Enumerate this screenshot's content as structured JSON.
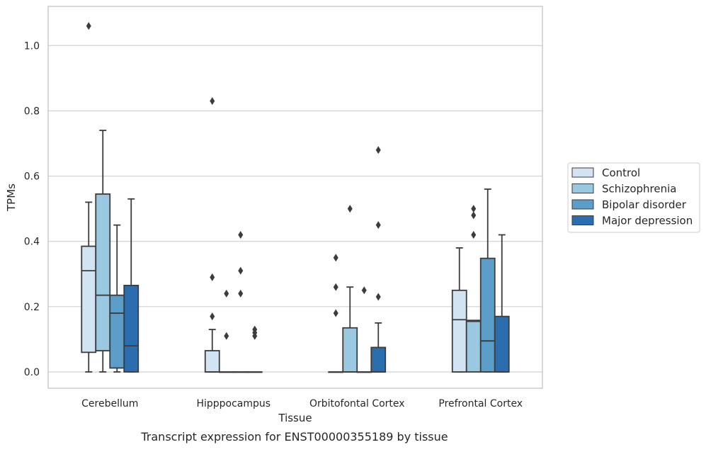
{
  "chart_data": {
    "type": "box",
    "xlabel": "Tissue",
    "ylabel": "TPMs",
    "caption": "Transcript expression for ENST00000355189 by tissue",
    "categories": [
      "Cerebellum",
      "Hipppocampus",
      "Orbitofontal Cortex",
      "Prefrontal Cortex"
    ],
    "ylim": [
      -0.05,
      1.12
    ],
    "yticks": [
      0.0,
      0.2,
      0.4,
      0.6,
      0.8,
      1.0
    ],
    "ytick_labels": [
      "0.0",
      "0.2",
      "0.4",
      "0.6",
      "0.8",
      "1.0"
    ],
    "grid": "horizontal",
    "legend_position": "right",
    "series": [
      {
        "name": "Control",
        "color": "#d2e3f3",
        "boxes": [
          {
            "whisker_low": 0.0,
            "q1": 0.06,
            "median": 0.31,
            "q3": 0.385,
            "whisker_high": 0.52,
            "outliers": [
              1.06
            ]
          },
          {
            "whisker_low": 0.0,
            "q1": 0.0,
            "median": 0.0,
            "q3": 0.065,
            "whisker_high": 0.13,
            "outliers": [
              0.17,
              0.29,
              0.83
            ]
          },
          {
            "whisker_low": 0.0,
            "q1": 0.0,
            "median": 0.0,
            "q3": 0.0,
            "whisker_high": 0.0,
            "outliers": [
              0.18,
              0.26,
              0.35
            ]
          },
          {
            "whisker_low": 0.0,
            "q1": 0.0,
            "median": 0.16,
            "q3": 0.25,
            "whisker_high": 0.38,
            "outliers": []
          }
        ]
      },
      {
        "name": "Schizophrenia",
        "color": "#9ac8e0",
        "boxes": [
          {
            "whisker_low": 0.0,
            "q1": 0.065,
            "median": 0.235,
            "q3": 0.545,
            "whisker_high": 0.74,
            "outliers": []
          },
          {
            "whisker_low": 0.0,
            "q1": 0.0,
            "median": 0.0,
            "q3": 0.0,
            "whisker_high": 0.0,
            "outliers": [
              0.11,
              0.24
            ]
          },
          {
            "whisker_low": 0.0,
            "q1": 0.0,
            "median": 0.0,
            "q3": 0.135,
            "whisker_high": 0.26,
            "outliers": [
              0.5
            ]
          },
          {
            "whisker_low": 0.0,
            "q1": 0.0,
            "median": 0.155,
            "q3": 0.158,
            "whisker_high": 0.158,
            "outliers": [
              0.42,
              0.48,
              0.5
            ]
          }
        ]
      },
      {
        "name": "Bipolar disorder",
        "color": "#5a9ec9",
        "boxes": [
          {
            "whisker_low": 0.0,
            "q1": 0.012,
            "median": 0.18,
            "q3": 0.235,
            "whisker_high": 0.45,
            "outliers": []
          },
          {
            "whisker_low": 0.0,
            "q1": 0.0,
            "median": 0.0,
            "q3": 0.0,
            "whisker_high": 0.0,
            "outliers": [
              0.24,
              0.31,
              0.42
            ]
          },
          {
            "whisker_low": 0.0,
            "q1": 0.0,
            "median": 0.0,
            "q3": 0.0,
            "whisker_high": 0.0,
            "outliers": [
              0.25
            ]
          },
          {
            "whisker_low": 0.0,
            "q1": 0.0,
            "median": 0.095,
            "q3": 0.348,
            "whisker_high": 0.56,
            "outliers": []
          }
        ]
      },
      {
        "name": "Major depression",
        "color": "#2a6eb0",
        "boxes": [
          {
            "whisker_low": 0.0,
            "q1": 0.0,
            "median": 0.08,
            "q3": 0.265,
            "whisker_high": 0.53,
            "outliers": []
          },
          {
            "whisker_low": 0.0,
            "q1": 0.0,
            "median": 0.0,
            "q3": 0.0,
            "whisker_high": 0.0,
            "outliers": [
              0.11,
              0.12,
              0.13
            ]
          },
          {
            "whisker_low": 0.0,
            "q1": 0.0,
            "median": 0.0,
            "q3": 0.075,
            "whisker_high": 0.15,
            "outliers": [
              0.23,
              0.45,
              0.68
            ]
          },
          {
            "whisker_low": 0.0,
            "q1": 0.0,
            "median": 0.0,
            "q3": 0.17,
            "whisker_high": 0.42,
            "outliers": []
          }
        ]
      }
    ]
  }
}
